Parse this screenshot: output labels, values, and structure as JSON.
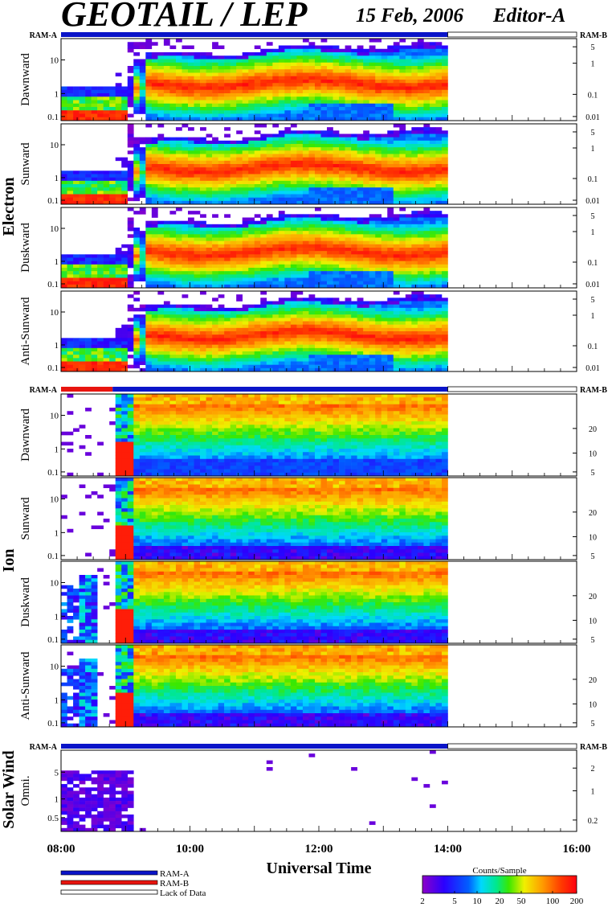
{
  "header": {
    "title": "GEOTAIL / LEP",
    "date": "15 Feb, 2006",
    "editor": "Editor-A"
  },
  "ram_labels": {
    "left": "RAM-A",
    "right": "RAM-B"
  },
  "groups": [
    {
      "label": "Electron"
    },
    {
      "label": "Ion"
    },
    {
      "label": "Solar Wind"
    }
  ],
  "chart_data": {
    "type": "heatmap",
    "xlabel": "Universal Time",
    "x_ticks": [
      "08:00",
      "10:00",
      "12:00",
      "14:00",
      "16:00"
    ],
    "x_range_hours": [
      8,
      16
    ],
    "data_end_hour": 14,
    "ram_status_segments": [
      {
        "group": "Electron",
        "segments": [
          {
            "mode": "RAM-A",
            "start": 8.0,
            "end": 14.0
          },
          {
            "mode": "Lack of Data",
            "start": 14.0,
            "end": 16.0
          }
        ]
      },
      {
        "group": "Ion",
        "segments": [
          {
            "mode": "RAM-B",
            "start": 8.0,
            "end": 8.8
          },
          {
            "mode": "RAM-A",
            "start": 8.8,
            "end": 14.0
          },
          {
            "mode": "Lack of Data",
            "start": 14.0,
            "end": 16.0
          }
        ]
      },
      {
        "group": "Solar Wind",
        "segments": [
          {
            "mode": "RAM-A",
            "start": 8.0,
            "end": 14.0
          },
          {
            "mode": "Lack of Data",
            "start": 14.0,
            "end": 16.0
          }
        ]
      }
    ],
    "panels": [
      {
        "group": "Electron",
        "label": "Dawnward",
        "left_ticks": [
          "10",
          "1",
          "0.1"
        ],
        "right_ticks": [
          "5",
          "1",
          "0.1",
          "0.01"
        ]
      },
      {
        "group": "Electron",
        "label": "Sunward",
        "left_ticks": [
          "10",
          "1",
          "0.1"
        ],
        "right_ticks": [
          "5",
          "1",
          "0.1",
          "0.01"
        ]
      },
      {
        "group": "Electron",
        "label": "Duskward",
        "left_ticks": [
          "10",
          "1",
          "0.1"
        ],
        "right_ticks": [
          "5",
          "1",
          "0.1",
          "0.01"
        ]
      },
      {
        "group": "Electron",
        "label": "Anti-Sunward",
        "left_ticks": [
          "10",
          "1",
          "0.1"
        ],
        "right_ticks": [
          "5",
          "1",
          "0.1",
          "0.01"
        ]
      },
      {
        "group": "Ion",
        "label": "Dawnward",
        "left_ticks": [
          "10",
          "1",
          "0.1"
        ],
        "right_ticks": [
          "20",
          "10",
          "5"
        ]
      },
      {
        "group": "Ion",
        "label": "Sunward",
        "left_ticks": [
          "10",
          "1",
          "0.1"
        ],
        "right_ticks": [
          "20",
          "10",
          "5"
        ]
      },
      {
        "group": "Ion",
        "label": "Duskward",
        "left_ticks": [
          "10",
          "1",
          "0.1"
        ],
        "right_ticks": [
          "20",
          "10",
          "5"
        ]
      },
      {
        "group": "Ion",
        "label": "Anti-Sunward",
        "left_ticks": [
          "10",
          "1",
          "0.1"
        ],
        "right_ticks": [
          "20",
          "10",
          "5"
        ]
      },
      {
        "group": "Solar Wind",
        "label": "Omni.",
        "left_ticks": [
          "5",
          "1",
          "0.5"
        ],
        "right_ticks": [
          "2",
          "1",
          "0.2"
        ]
      }
    ],
    "legend": [
      {
        "label": "RAM-A",
        "color": "#0a14c8"
      },
      {
        "label": "RAM-B",
        "color": "#e8150f"
      },
      {
        "label": "Lack of Data",
        "color": "#ffffff"
      }
    ],
    "colorbar": {
      "title": "Counts/Sample",
      "ticks": [
        "2",
        "5",
        "10",
        "20",
        "50",
        "100",
        "200"
      ],
      "colors": [
        "#7a00d2",
        "#0018ff",
        "#00e6ff",
        "#00e678",
        "#ffff00",
        "#ff8c00",
        "#ff1a00"
      ]
    }
  }
}
